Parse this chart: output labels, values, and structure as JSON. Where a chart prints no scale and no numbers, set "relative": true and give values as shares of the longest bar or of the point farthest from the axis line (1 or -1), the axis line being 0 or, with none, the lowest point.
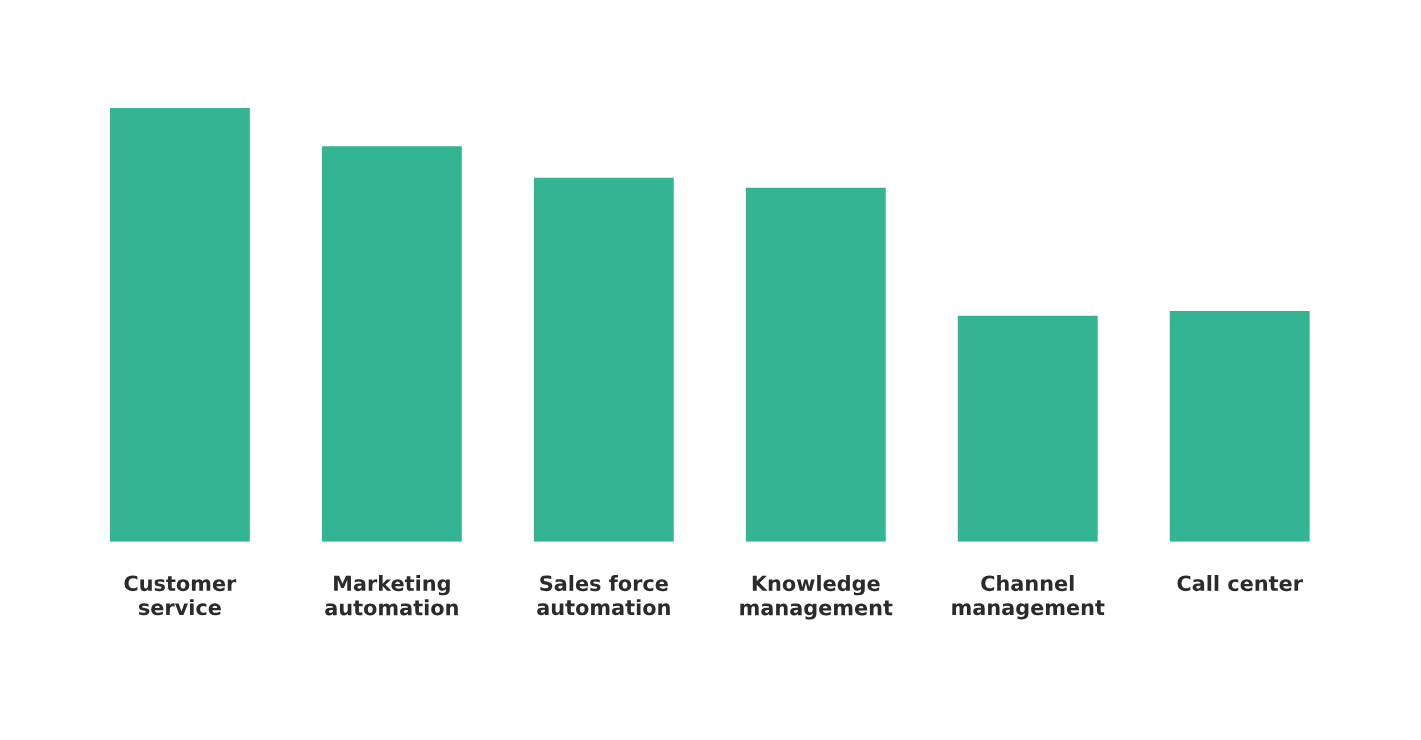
{
  "chart_data": {
    "type": "bar",
    "relative": true,
    "color": "#33b594",
    "categories": [
      "Customer service",
      "Marketing automation",
      "Sales force automation",
      "Knowledge management",
      "Channel management",
      "Call center"
    ],
    "values": [
      1,
      0.912,
      0.839,
      0.816,
      0.521,
      0.532
    ]
  }
}
